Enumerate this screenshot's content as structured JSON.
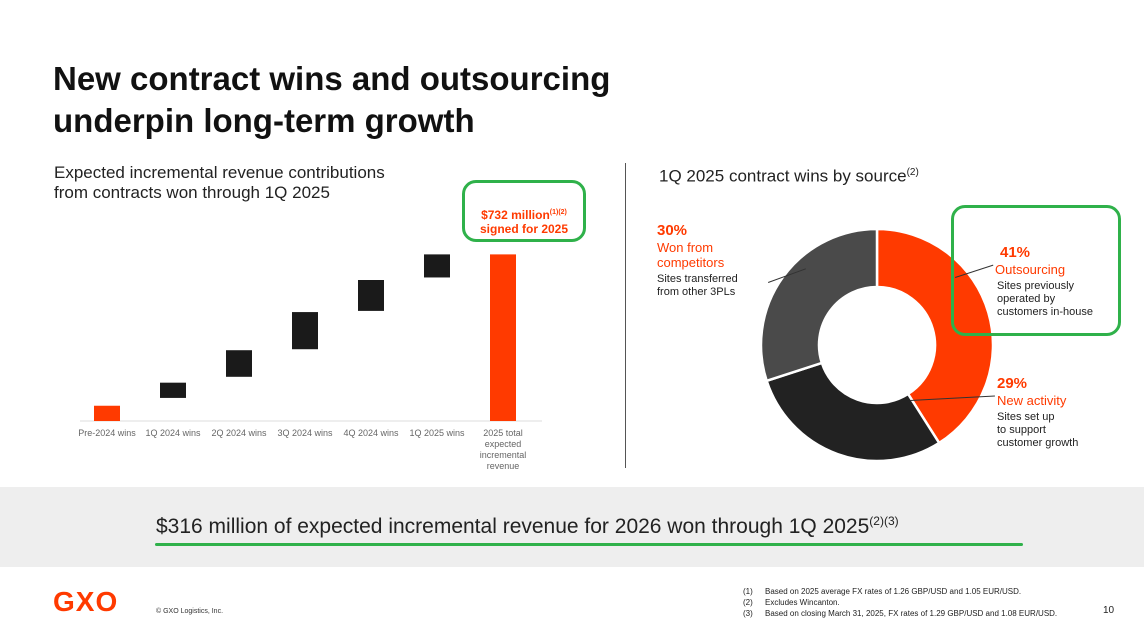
{
  "title_line1": "New contract wins and outsourcing",
  "title_line2": "underpin long-term growth",
  "left_panel": {
    "subtitle_line1": "Expected incremental revenue contributions",
    "subtitle_line2": "from contracts won through 1Q 2025",
    "callout_line1": "$732 million",
    "callout_sup": "(1)(2)",
    "callout_line2": "signed for 2025"
  },
  "right_panel": {
    "subtitle": "1Q 2025 contract wins by source",
    "subtitle_sup": "(2)",
    "segments": [
      {
        "pct": "30%",
        "source_line1": "Won from",
        "source_line2": "competitors",
        "desc_line1": "Sites transferred",
        "desc_line2": "from other 3PLs",
        "desc_line3": ""
      },
      {
        "pct": "41%",
        "source_line1": "Outsourcing",
        "source_line2": "",
        "desc_line1": "Sites previously",
        "desc_line2": "operated by",
        "desc_line3": "customers in-house"
      },
      {
        "pct": "29%",
        "source_line1": "New activity",
        "source_line2": "",
        "desc_line1": "Sites set up",
        "desc_line2": "to support",
        "desc_line3": "customer growth"
      }
    ]
  },
  "chart_data": [
    {
      "type": "bar",
      "subtype": "waterfall",
      "categories": [
        "Pre-2024 wins",
        "1Q 2024 wins",
        "2Q 2024 wins",
        "3Q 2024 wins",
        "4Q 2024 wins",
        "1Q 2025 wins",
        "2025 total expected incremental revenue"
      ],
      "category_lines": [
        [
          "Pre-2024 wins"
        ],
        [
          "1Q 2024 wins"
        ],
        [
          "2Q 2024 wins"
        ],
        [
          "3Q 2024 wins"
        ],
        [
          "4Q 2024 wins"
        ],
        [
          "1Q 2025 wins"
        ],
        [
          "2025 total",
          "expected",
          "incremental",
          "revenue"
        ]
      ],
      "steps": [
        {
          "start": 0,
          "end": 78
        },
        {
          "start": 118,
          "end": 196
        },
        {
          "start": 226,
          "end": 362
        },
        {
          "start": 367,
          "end": 557
        },
        {
          "start": 563,
          "end": 721
        },
        {
          "start": 734,
          "end": 852
        },
        {
          "start": 0,
          "end": 852,
          "total": true
        }
      ],
      "total_label": "$732 million",
      "ylim": [
        0,
        900
      ],
      "grid": false,
      "colors": {
        "first_and_total": "#ff3a00",
        "increments": "#1a1a1a"
      }
    },
    {
      "type": "pie",
      "subtype": "donut",
      "labels": [
        "Won from competitors",
        "Outsourcing",
        "New activity"
      ],
      "values": [
        30,
        41,
        29
      ],
      "colors": [
        "#4a4a4a",
        "#ff3a00",
        "#222222"
      ],
      "start_angle_deg": 0,
      "order_clockwise": [
        "Outsourcing",
        "New activity",
        "Won from competitors"
      ]
    }
  ],
  "band": {
    "text": "$316 million of expected incremental revenue for 2026 won through 1Q 2025",
    "sup": "(2)(3)"
  },
  "footer": {
    "logo": "GXO",
    "copyright": "© GXO Logistics, Inc.",
    "footnotes": [
      {
        "num": "(1)",
        "text": "Based on 2025 average FX rates of 1.26 GBP/USD and 1.05 EUR/USD."
      },
      {
        "num": "(2)",
        "text": "Excludes Wincanton."
      },
      {
        "num": "(3)",
        "text": "Based on closing March 31, 2025, FX rates of 1.29 GBP/USD and 1.08 EUR/USD."
      }
    ],
    "page": "10"
  },
  "colors": {
    "accent": "#ff3a00",
    "highlight_outline": "#2fb14a",
    "band_bg": "#eeeeee"
  }
}
